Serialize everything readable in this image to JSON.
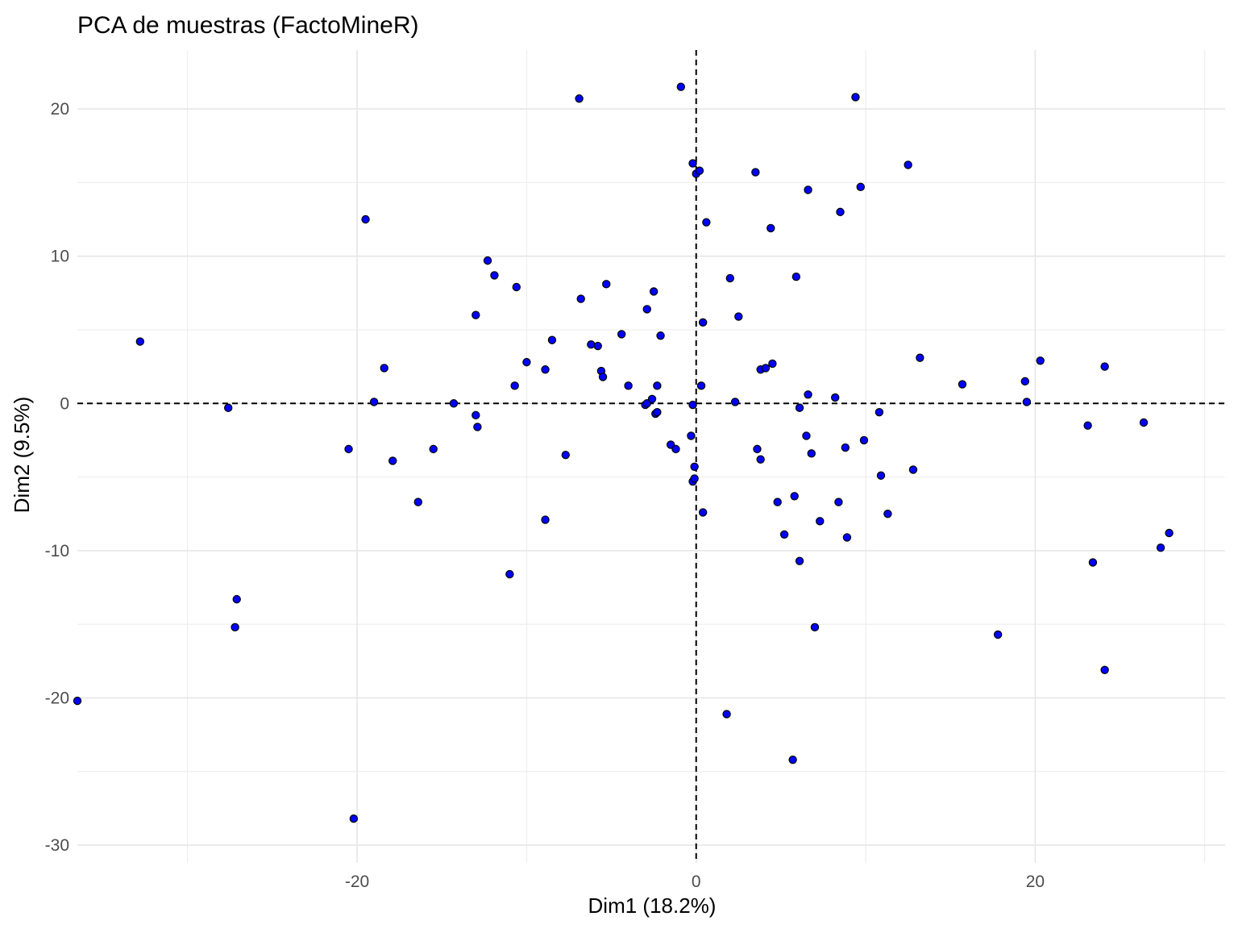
{
  "chart_data": {
    "type": "scatter",
    "title": "PCA de muestras (FactoMineR)",
    "xlabel": "Dim1 (18.2%)",
    "ylabel": "Dim2 (9.5%)",
    "xlim": [
      -36.5,
      31.2
    ],
    "ylim": [
      -31.2,
      24.0
    ],
    "xticks": [
      -20,
      0,
      20
    ],
    "yticks": [
      -30,
      -20,
      -10,
      0,
      10,
      20
    ],
    "grid": true,
    "reference_lines": {
      "x": 0,
      "y": 0,
      "style": "dashed"
    },
    "point_fill": "#0000ff",
    "point_stroke": "#000000",
    "points": [
      {
        "x": -36.5,
        "y": -20.2
      },
      {
        "x": -32.8,
        "y": 4.2
      },
      {
        "x": -27.6,
        "y": -0.3
      },
      {
        "x": -27.2,
        "y": -15.2
      },
      {
        "x": -27.1,
        "y": -13.3
      },
      {
        "x": -20.5,
        "y": -3.1
      },
      {
        "x": -20.2,
        "y": -28.2
      },
      {
        "x": -19.5,
        "y": 12.5
      },
      {
        "x": -19.0,
        "y": 0.1
      },
      {
        "x": -18.4,
        "y": 2.4
      },
      {
        "x": -17.9,
        "y": -3.9
      },
      {
        "x": -16.4,
        "y": -6.7
      },
      {
        "x": -15.5,
        "y": -3.1
      },
      {
        "x": -14.3,
        "y": 0.0
      },
      {
        "x": -13.0,
        "y": 6.0
      },
      {
        "x": -13.0,
        "y": -0.8
      },
      {
        "x": -12.9,
        "y": -1.6
      },
      {
        "x": -12.3,
        "y": 9.7
      },
      {
        "x": -11.9,
        "y": 8.7
      },
      {
        "x": -11.0,
        "y": -11.6
      },
      {
        "x": -10.7,
        "y": 1.2
      },
      {
        "x": -10.6,
        "y": 7.9
      },
      {
        "x": -10.0,
        "y": 2.8
      },
      {
        "x": -8.9,
        "y": 2.3
      },
      {
        "x": -8.9,
        "y": -7.9
      },
      {
        "x": -8.5,
        "y": 4.3
      },
      {
        "x": -7.7,
        "y": -3.5
      },
      {
        "x": -6.9,
        "y": 20.7
      },
      {
        "x": -6.8,
        "y": 7.1
      },
      {
        "x": -6.2,
        "y": 4.0
      },
      {
        "x": -5.8,
        "y": 3.9
      },
      {
        "x": -5.6,
        "y": 2.2
      },
      {
        "x": -5.5,
        "y": 1.8
      },
      {
        "x": -5.3,
        "y": 8.1
      },
      {
        "x": -4.4,
        "y": 4.7
      },
      {
        "x": -4.0,
        "y": 1.2
      },
      {
        "x": -3.0,
        "y": -0.1
      },
      {
        "x": -2.9,
        "y": 0.0
      },
      {
        "x": -2.9,
        "y": 6.4
      },
      {
        "x": -2.6,
        "y": 0.3
      },
      {
        "x": -2.5,
        "y": 7.6
      },
      {
        "x": -2.4,
        "y": -0.7
      },
      {
        "x": -2.3,
        "y": 1.2
      },
      {
        "x": -2.3,
        "y": -0.6
      },
      {
        "x": -2.1,
        "y": 4.6
      },
      {
        "x": -1.5,
        "y": -2.8
      },
      {
        "x": -1.2,
        "y": -3.1
      },
      {
        "x": -0.9,
        "y": 21.5
      },
      {
        "x": -0.3,
        "y": -2.2
      },
      {
        "x": -0.2,
        "y": 16.3
      },
      {
        "x": -0.2,
        "y": -0.1
      },
      {
        "x": -0.2,
        "y": -5.3
      },
      {
        "x": -0.1,
        "y": -4.3
      },
      {
        "x": -0.1,
        "y": -5.1
      },
      {
        "x": 0.0,
        "y": 15.6
      },
      {
        "x": 0.2,
        "y": 15.8
      },
      {
        "x": 0.3,
        "y": 1.2
      },
      {
        "x": 0.4,
        "y": 5.5
      },
      {
        "x": 0.4,
        "y": -7.4
      },
      {
        "x": 0.6,
        "y": 12.3
      },
      {
        "x": 1.8,
        "y": -21.1
      },
      {
        "x": 2.0,
        "y": 8.5
      },
      {
        "x": 2.3,
        "y": 0.1
      },
      {
        "x": 2.5,
        "y": 5.9
      },
      {
        "x": 3.5,
        "y": 15.7
      },
      {
        "x": 3.6,
        "y": -3.1
      },
      {
        "x": 3.8,
        "y": -3.8
      },
      {
        "x": 3.8,
        "y": 2.3
      },
      {
        "x": 4.1,
        "y": 2.4
      },
      {
        "x": 4.4,
        "y": 11.9
      },
      {
        "x": 4.5,
        "y": 2.7
      },
      {
        "x": 4.8,
        "y": -6.7
      },
      {
        "x": 5.2,
        "y": -8.9
      },
      {
        "x": 5.7,
        "y": -24.2
      },
      {
        "x": 5.8,
        "y": -6.3
      },
      {
        "x": 5.9,
        "y": 8.6
      },
      {
        "x": 6.1,
        "y": -0.3
      },
      {
        "x": 6.1,
        "y": -10.7
      },
      {
        "x": 6.5,
        "y": -2.2
      },
      {
        "x": 6.6,
        "y": 0.6
      },
      {
        "x": 6.6,
        "y": 14.5
      },
      {
        "x": 6.8,
        "y": -3.4
      },
      {
        "x": 7.0,
        "y": -15.2
      },
      {
        "x": 7.3,
        "y": -8.0
      },
      {
        "x": 8.2,
        "y": 0.4
      },
      {
        "x": 8.4,
        "y": -6.7
      },
      {
        "x": 8.5,
        "y": 13.0
      },
      {
        "x": 8.8,
        "y": -3.0
      },
      {
        "x": 8.9,
        "y": -9.1
      },
      {
        "x": 9.4,
        "y": 20.8
      },
      {
        "x": 9.7,
        "y": 14.7
      },
      {
        "x": 9.9,
        "y": -2.5
      },
      {
        "x": 10.8,
        "y": -0.6
      },
      {
        "x": 10.9,
        "y": -4.9
      },
      {
        "x": 11.3,
        "y": -7.5
      },
      {
        "x": 12.5,
        "y": 16.2
      },
      {
        "x": 12.8,
        "y": -4.5
      },
      {
        "x": 13.2,
        "y": 3.1
      },
      {
        "x": 15.7,
        "y": 1.3
      },
      {
        "x": 17.8,
        "y": -15.7
      },
      {
        "x": 19.4,
        "y": 1.5
      },
      {
        "x": 19.5,
        "y": 0.1
      },
      {
        "x": 20.3,
        "y": 2.9
      },
      {
        "x": 23.1,
        "y": -1.5
      },
      {
        "x": 23.4,
        "y": -10.8
      },
      {
        "x": 24.1,
        "y": 2.5
      },
      {
        "x": 24.1,
        "y": -18.1
      },
      {
        "x": 26.4,
        "y": -1.3
      },
      {
        "x": 27.4,
        "y": -9.8
      },
      {
        "x": 27.9,
        "y": -8.8
      }
    ]
  }
}
